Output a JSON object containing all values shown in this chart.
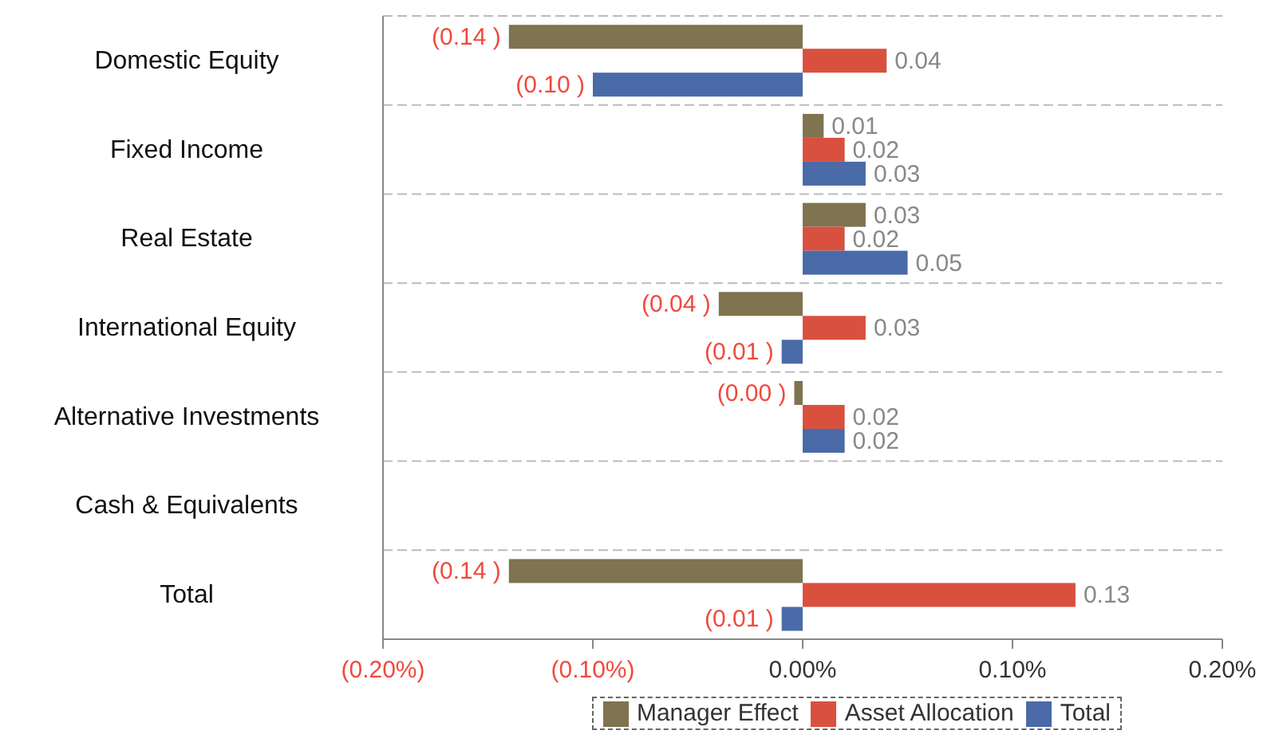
{
  "chart_data": {
    "type": "bar",
    "orientation": "horizontal",
    "categories": [
      "Domestic Equity",
      "Fixed Income",
      "Real Estate",
      "International Equity",
      "Alternative Investments",
      "Cash & Equivalents",
      "Total"
    ],
    "series": [
      {
        "name": "Manager Effect",
        "color": "#7f7350",
        "values": [
          -0.14,
          0.01,
          0.03,
          -0.04,
          -0.004,
          0,
          -0.14
        ],
        "value_labels": [
          "(0.14 )",
          "0.01",
          "0.03",
          "(0.04 )",
          "(0.00 )",
          null,
          "(0.14 )"
        ]
      },
      {
        "name": "Asset Allocation",
        "color": "#d9503f",
        "values": [
          0.04,
          0.02,
          0.02,
          0.03,
          0.02,
          0,
          0.13
        ],
        "value_labels": [
          "0.04",
          "0.02",
          "0.02",
          "0.03",
          "0.02",
          null,
          "0.13"
        ]
      },
      {
        "name": "Total",
        "color": "#4a6aa8",
        "values": [
          -0.1,
          0.03,
          0.05,
          -0.01,
          0.02,
          0,
          -0.01
        ],
        "value_labels": [
          "(0.10 )",
          "0.03",
          "0.05",
          "(0.01 )",
          "0.02",
          null,
          "(0.01 )"
        ]
      }
    ],
    "xlim": [
      -0.2,
      0.2
    ],
    "xticks": [
      {
        "value": -0.2,
        "label": "(0.20%)"
      },
      {
        "value": -0.1,
        "label": "(0.10%)"
      },
      {
        "value": 0,
        "label": "0.00%"
      },
      {
        "value": 0.1,
        "label": "0.10%"
      },
      {
        "value": 0.2,
        "label": "0.20%"
      }
    ],
    "grid": "y",
    "legend": "bottom"
  }
}
